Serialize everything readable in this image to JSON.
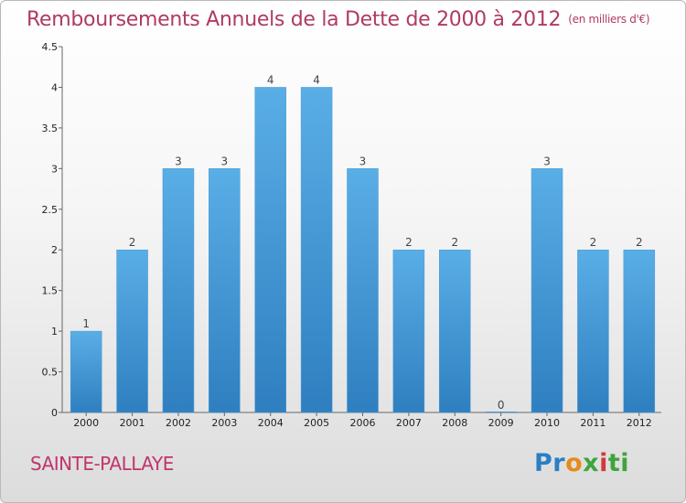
{
  "title": "Remboursements Annuels de la Dette de 2000 à 2012",
  "unit": "(en milliers d'€)",
  "commune": "SAINTE-PALLAYE",
  "logo": {
    "parts": [
      "Pr",
      "o",
      "x",
      "i",
      "ti"
    ],
    "colors": [
      "#2a7fc4",
      "#e88a1c",
      "#3ea53c",
      "#d23a3a",
      "#3ea53c"
    ]
  },
  "colors": {
    "bar_top": "#5aaee6",
    "bar_bottom": "#2f7fc0",
    "title": "#b03a64",
    "commune": "#c0356b"
  },
  "chart_data": {
    "type": "bar",
    "title": "Remboursements Annuels de la Dette de 2000 à 2012",
    "categories": [
      "2000",
      "2001",
      "2002",
      "2003",
      "2004",
      "2005",
      "2006",
      "2007",
      "2008",
      "2009",
      "2010",
      "2011",
      "2012"
    ],
    "values": [
      1,
      2,
      3,
      3,
      4,
      4,
      3,
      2,
      2,
      0,
      3,
      2,
      2
    ],
    "data_labels": [
      "1",
      "2",
      "3",
      "3",
      "4",
      "4",
      "3",
      "2",
      "2",
      "0",
      "3",
      "2",
      "2"
    ],
    "yticks": [
      "0",
      "0.5",
      "1",
      "1.5",
      "2",
      "2.5",
      "3",
      "3.5",
      "4",
      "4.5"
    ],
    "ylim": [
      0,
      4.5
    ],
    "xlabel": "",
    "ylabel": "",
    "grid": false
  }
}
